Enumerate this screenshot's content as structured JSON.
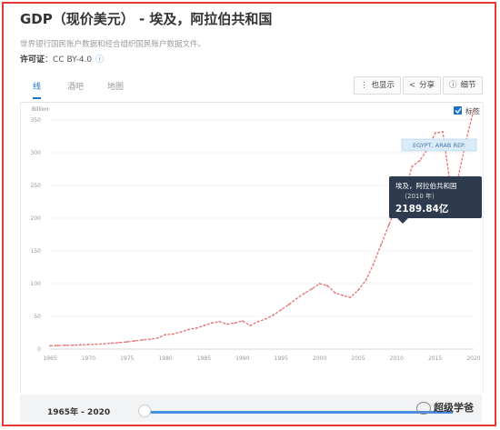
{
  "page": {
    "title": "GDP（现价美元） - 埃及，阿拉伯共和国",
    "subtitle": "世界银行国民账户数据和经合组织国民账户数据文件。",
    "license_label": "许可证",
    "license_value": "CC BY-4.0"
  },
  "tabs": [
    {
      "label": "线",
      "active": true
    },
    {
      "label": "酒吧",
      "active": false
    },
    {
      "label": "地图",
      "active": false
    }
  ],
  "toolbar": {
    "also_show": "也显示",
    "share": "分享",
    "details": "细节"
  },
  "chart_options": {
    "label_checkbox": "标签",
    "label_checked": true
  },
  "tooltip": {
    "country": "埃及，阿拉伯共和国",
    "year": "（2010 年）",
    "value": "2189.84亿"
  },
  "series_label": "EGYPT, ARAB REP.",
  "footer": {
    "range": "1965年 - 2020"
  },
  "watermark": "超级学爸",
  "chart_data": {
    "type": "line",
    "ylabel": "Billion",
    "ylim": [
      0,
      350
    ],
    "yticks": [
      0,
      50,
      100,
      150,
      200,
      250,
      300,
      350
    ],
    "xlim": [
      1965,
      2020
    ],
    "xticks": [
      1965,
      1970,
      1975,
      1980,
      1985,
      1990,
      1995,
      2000,
      2005,
      2010,
      2015,
      2020
    ],
    "grid": true,
    "colors": {
      "line": "#e57373",
      "label_bg": "#d9ecf8",
      "tooltip_bg": "#2e3b4e"
    },
    "series": [
      {
        "name": "EGYPT, ARAB REP.",
        "x": [
          1965,
          1966,
          1967,
          1968,
          1969,
          1970,
          1971,
          1972,
          1973,
          1974,
          1975,
          1976,
          1977,
          1978,
          1979,
          1980,
          1981,
          1982,
          1983,
          1984,
          1985,
          1986,
          1987,
          1988,
          1989,
          1990,
          1991,
          1992,
          1993,
          1994,
          1995,
          1996,
          1997,
          1998,
          1999,
          2000,
          2001,
          2002,
          2003,
          2004,
          2005,
          2006,
          2007,
          2008,
          2009,
          2010,
          2011,
          2012,
          2013,
          2014,
          2015,
          2016,
          2017,
          2018,
          2019,
          2020
        ],
        "values": [
          5,
          5.5,
          5.8,
          6,
          6.5,
          7,
          7.5,
          8,
          9,
          10,
          11,
          12.5,
          14,
          15,
          17,
          22,
          23,
          26,
          30,
          32,
          36,
          40,
          42,
          38,
          40,
          43,
          36,
          42,
          46,
          52,
          60,
          68,
          77,
          85,
          92,
          100,
          97,
          86,
          82,
          79,
          90,
          105,
          130,
          160,
          190,
          219,
          236,
          279,
          288,
          305,
          330,
          332,
          248,
          263,
          318,
          365
        ]
      }
    ]
  }
}
